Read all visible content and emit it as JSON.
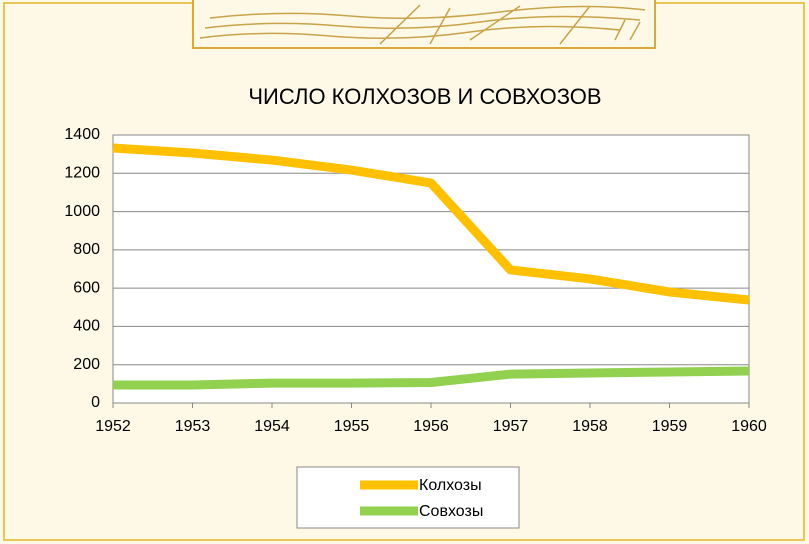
{
  "chart_data": {
    "type": "line",
    "title": "ЧИСЛО КОЛХОЗОВ И СОВХОЗОВ",
    "x": [
      1952,
      1953,
      1954,
      1955,
      1956,
      1957,
      1958,
      1959,
      1960
    ],
    "xlim": [
      1952,
      1960
    ],
    "xticks": [
      1952,
      1953,
      1954,
      1955,
      1956,
      1957,
      1958,
      1959,
      1960
    ],
    "ylim": [
      0,
      1400
    ],
    "yticks": [
      0,
      200,
      400,
      600,
      800,
      1000,
      1200,
      1400
    ],
    "grid": true,
    "legend": "bottom",
    "series": [
      {
        "name": "Колхозы",
        "color": "#ffc000",
        "values": [
          1332,
          1306,
          1269,
          1217,
          1149,
          695,
          648,
          580,
          538
        ]
      },
      {
        "name": "Совхозы",
        "color": "#92d050",
        "values": [
          94,
          94,
          104,
          104,
          107,
          151,
          157,
          162,
          167
        ]
      }
    ]
  }
}
